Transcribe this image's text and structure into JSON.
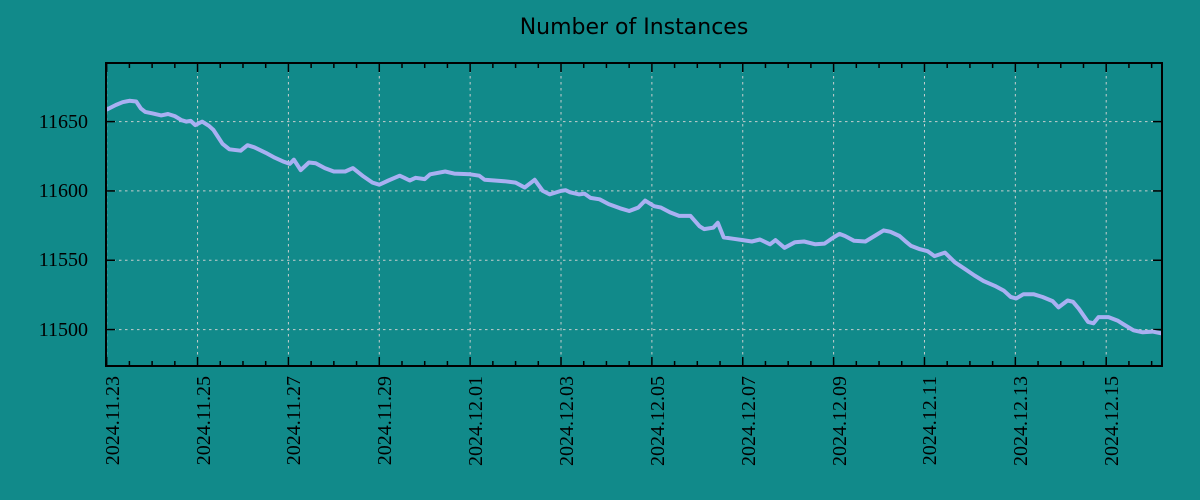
{
  "page": {
    "background": "#118A8A"
  },
  "chart_data": {
    "type": "line",
    "title": "Number of Instances",
    "xlabel": "",
    "ylabel": "",
    "legend": "none",
    "grid": true,
    "colors": {
      "background": "#118A8A",
      "line": "#A9B0F2",
      "grid": "#C8CECE",
      "axis": "#000000",
      "text": "#000000"
    },
    "y_axis": {
      "ylim": [
        11473,
        11693
      ],
      "ticks": [
        {
          "v": 11500,
          "label": "11500"
        },
        {
          "v": 11550,
          "label": "11550"
        },
        {
          "v": 11600,
          "label": "11600"
        },
        {
          "v": 11650,
          "label": "11650"
        }
      ]
    },
    "x_axis": {
      "xlim": [
        -0.037,
        23.25
      ],
      "minor_tick_step_days": 0.5,
      "ticks": [
        {
          "d": 0,
          "label": "2024.11.23"
        },
        {
          "d": 2,
          "label": "2024.11.25"
        },
        {
          "d": 4,
          "label": "2024.11.27"
        },
        {
          "d": 6,
          "label": "2024.11.29"
        },
        {
          "d": 8,
          "label": "2024.12.01"
        },
        {
          "d": 10,
          "label": "2024.12.03"
        },
        {
          "d": 12,
          "label": "2024.12.05"
        },
        {
          "d": 14,
          "label": "2024.12.07"
        },
        {
          "d": 16,
          "label": "2024.12.09"
        },
        {
          "d": 18,
          "label": "2024.12.11"
        },
        {
          "d": 20,
          "label": "2024.12.13"
        },
        {
          "d": 22,
          "label": "2024.12.15"
        }
      ]
    },
    "series": [
      {
        "name": "instances",
        "points": [
          [
            -0.037,
            11658
          ],
          [
            0.2,
            11662
          ],
          [
            0.35,
            11664
          ],
          [
            0.5,
            11665
          ],
          [
            0.65,
            11664.5
          ],
          [
            0.75,
            11659.5
          ],
          [
            0.85,
            11657
          ],
          [
            1.0,
            11656
          ],
          [
            1.2,
            11654.5
          ],
          [
            1.35,
            11655.5
          ],
          [
            1.5,
            11654
          ],
          [
            1.65,
            11651
          ],
          [
            1.75,
            11650
          ],
          [
            1.85,
            11650.5
          ],
          [
            1.95,
            11647.5
          ],
          [
            2.1,
            11650
          ],
          [
            2.25,
            11647
          ],
          [
            2.35,
            11644
          ],
          [
            2.45,
            11639
          ],
          [
            2.55,
            11634
          ],
          [
            2.7,
            11630
          ],
          [
            2.95,
            11629
          ],
          [
            3.1,
            11633
          ],
          [
            3.25,
            11631.5
          ],
          [
            3.5,
            11627.5
          ],
          [
            3.7,
            11624
          ],
          [
            3.9,
            11621
          ],
          [
            4.03,
            11619.5
          ],
          [
            4.12,
            11622.5
          ],
          [
            4.27,
            11615
          ],
          [
            4.45,
            11620.5
          ],
          [
            4.6,
            11620
          ],
          [
            4.8,
            11616.5
          ],
          [
            5.0,
            11614
          ],
          [
            5.25,
            11614
          ],
          [
            5.42,
            11616.5
          ],
          [
            5.65,
            11610.5
          ],
          [
            5.85,
            11606
          ],
          [
            6.0,
            11604.5
          ],
          [
            6.2,
            11607.5
          ],
          [
            6.45,
            11611
          ],
          [
            6.55,
            11609.5
          ],
          [
            6.67,
            11607.5
          ],
          [
            6.8,
            11609.5
          ],
          [
            7.0,
            11608.5
          ],
          [
            7.12,
            11612
          ],
          [
            7.45,
            11614
          ],
          [
            7.65,
            11612.5
          ],
          [
            8.0,
            11612
          ],
          [
            8.2,
            11611
          ],
          [
            8.32,
            11608
          ],
          [
            8.75,
            11607
          ],
          [
            9.0,
            11606
          ],
          [
            9.2,
            11602.5
          ],
          [
            9.42,
            11608
          ],
          [
            9.6,
            11600
          ],
          [
            9.75,
            11597.5
          ],
          [
            10.0,
            11600
          ],
          [
            10.1,
            11600.5
          ],
          [
            10.2,
            11599
          ],
          [
            10.4,
            11597.5
          ],
          [
            10.52,
            11598
          ],
          [
            10.65,
            11595
          ],
          [
            10.85,
            11594
          ],
          [
            11.05,
            11590.5
          ],
          [
            11.3,
            11587.5
          ],
          [
            11.5,
            11585.5
          ],
          [
            11.7,
            11588
          ],
          [
            11.85,
            11593
          ],
          [
            12.05,
            11589
          ],
          [
            12.2,
            11588
          ],
          [
            12.4,
            11584.5
          ],
          [
            12.6,
            11582
          ],
          [
            12.85,
            11582
          ],
          [
            13.05,
            11574.5
          ],
          [
            13.15,
            11572.5
          ],
          [
            13.35,
            11573.5
          ],
          [
            13.45,
            11577
          ],
          [
            13.58,
            11566.5
          ],
          [
            13.8,
            11565.5
          ],
          [
            14.0,
            11564.5
          ],
          [
            14.2,
            11563.5
          ],
          [
            14.38,
            11565
          ],
          [
            14.6,
            11561.5
          ],
          [
            14.72,
            11564.5
          ],
          [
            14.92,
            11559
          ],
          [
            15.15,
            11563
          ],
          [
            15.35,
            11563.5
          ],
          [
            15.6,
            11561.5
          ],
          [
            15.8,
            11562
          ],
          [
            16.0,
            11566.5
          ],
          [
            16.13,
            11569
          ],
          [
            16.25,
            11567.5
          ],
          [
            16.45,
            11564
          ],
          [
            16.7,
            11563.5
          ],
          [
            16.9,
            11567.5
          ],
          [
            17.1,
            11571.5
          ],
          [
            17.25,
            11570.5
          ],
          [
            17.45,
            11567.5
          ],
          [
            17.57,
            11564
          ],
          [
            17.7,
            11560.5
          ],
          [
            17.9,
            11558
          ],
          [
            18.07,
            11556.5
          ],
          [
            18.22,
            11553
          ],
          [
            18.45,
            11555.5
          ],
          [
            18.67,
            11548.5
          ],
          [
            18.9,
            11543.5
          ],
          [
            19.1,
            11539
          ],
          [
            19.3,
            11535
          ],
          [
            19.55,
            11531.5
          ],
          [
            19.75,
            11528
          ],
          [
            19.9,
            11523.5
          ],
          [
            20.02,
            11522.5
          ],
          [
            20.18,
            11525.5
          ],
          [
            20.4,
            11525.5
          ],
          [
            20.6,
            11523.5
          ],
          [
            20.82,
            11520.5
          ],
          [
            20.95,
            11516
          ],
          [
            21.15,
            11521
          ],
          [
            21.27,
            11520
          ],
          [
            21.4,
            11515
          ],
          [
            21.6,
            11505.5
          ],
          [
            21.72,
            11504.5
          ],
          [
            21.83,
            11509
          ],
          [
            22.05,
            11509
          ],
          [
            22.25,
            11506.5
          ],
          [
            22.37,
            11504
          ],
          [
            22.6,
            11499.5
          ],
          [
            22.8,
            11498
          ],
          [
            23.02,
            11498.5
          ],
          [
            23.25,
            11497
          ]
        ]
      }
    ]
  }
}
